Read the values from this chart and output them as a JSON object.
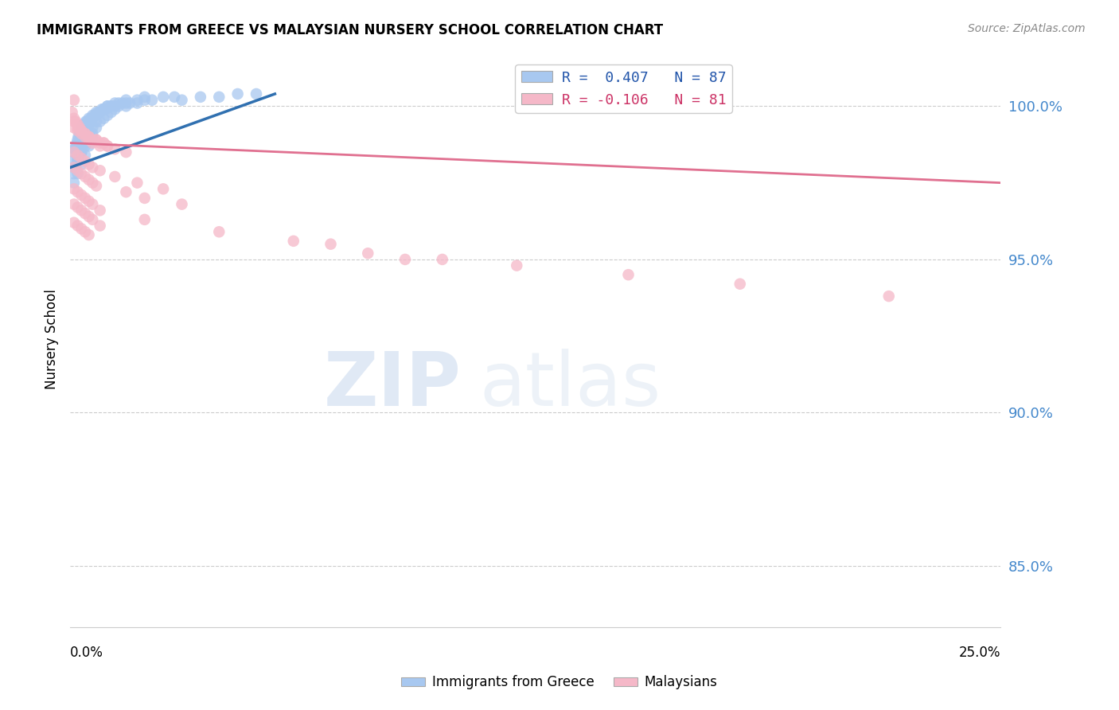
{
  "title": "IMMIGRANTS FROM GREECE VS MALAYSIAN NURSERY SCHOOL CORRELATION CHART",
  "source": "Source: ZipAtlas.com",
  "ylabel": "Nursery School",
  "blue_color": "#a8c8f0",
  "pink_color": "#f5b8c8",
  "blue_line_color": "#3070b0",
  "pink_line_color": "#e07090",
  "watermark_zip": "ZIP",
  "watermark_atlas": "atlas",
  "xlim": [
    0.0,
    0.25
  ],
  "ylim": [
    83.0,
    101.8
  ],
  "y_ticks": [
    85.0,
    90.0,
    95.0,
    100.0
  ],
  "x_tick_positions": [
    0.0,
    0.0625,
    0.125,
    0.1875,
    0.25
  ],
  "blue_scatter_x": [
    0.0005,
    0.001,
    0.0012,
    0.0015,
    0.0018,
    0.002,
    0.0022,
    0.0025,
    0.003,
    0.0032,
    0.0035,
    0.004,
    0.0042,
    0.0045,
    0.005,
    0.0055,
    0.006,
    0.0065,
    0.007,
    0.0075,
    0.008,
    0.0085,
    0.009,
    0.0095,
    0.01,
    0.011,
    0.012,
    0.013,
    0.014,
    0.015,
    0.001,
    0.0015,
    0.002,
    0.0025,
    0.003,
    0.0035,
    0.004,
    0.0045,
    0.005,
    0.0055,
    0.006,
    0.007,
    0.008,
    0.009,
    0.01,
    0.011,
    0.012,
    0.015,
    0.018,
    0.02,
    0.001,
    0.002,
    0.003,
    0.004,
    0.005,
    0.006,
    0.007,
    0.008,
    0.009,
    0.01,
    0.011,
    0.012,
    0.013,
    0.015,
    0.016,
    0.018,
    0.02,
    0.022,
    0.025,
    0.028,
    0.001,
    0.002,
    0.003,
    0.004,
    0.005,
    0.006,
    0.03,
    0.035,
    0.04,
    0.045,
    0.002,
    0.003,
    0.004,
    0.005,
    0.006,
    0.007,
    0.05
  ],
  "blue_scatter_y": [
    98.2,
    98.5,
    98.6,
    98.7,
    98.8,
    98.9,
    99.0,
    99.1,
    99.2,
    99.3,
    99.4,
    99.4,
    99.5,
    99.5,
    99.6,
    99.6,
    99.7,
    99.7,
    99.8,
    99.8,
    99.8,
    99.9,
    99.9,
    99.9,
    100.0,
    100.0,
    100.0,
    100.1,
    100.1,
    100.1,
    97.8,
    98.0,
    98.2,
    98.4,
    98.6,
    98.8,
    99.0,
    99.2,
    99.4,
    99.5,
    99.6,
    99.7,
    99.8,
    99.9,
    100.0,
    100.0,
    100.1,
    100.2,
    100.2,
    100.3,
    98.0,
    98.3,
    98.5,
    98.7,
    98.9,
    99.1,
    99.3,
    99.5,
    99.6,
    99.7,
    99.8,
    99.9,
    100.0,
    100.0,
    100.1,
    100.1,
    100.2,
    100.2,
    100.3,
    100.3,
    97.5,
    97.8,
    98.1,
    98.4,
    98.7,
    99.0,
    100.2,
    100.3,
    100.3,
    100.4,
    98.2,
    98.5,
    98.8,
    99.1,
    99.3,
    99.5,
    100.4
  ],
  "pink_scatter_x": [
    0.0005,
    0.001,
    0.0015,
    0.002,
    0.0025,
    0.003,
    0.004,
    0.005,
    0.006,
    0.007,
    0.008,
    0.009,
    0.01,
    0.001,
    0.002,
    0.003,
    0.004,
    0.005,
    0.006,
    0.008,
    0.001,
    0.002,
    0.003,
    0.004,
    0.005,
    0.007,
    0.009,
    0.01,
    0.012,
    0.015,
    0.001,
    0.002,
    0.003,
    0.004,
    0.005,
    0.006,
    0.008,
    0.012,
    0.018,
    0.025,
    0.001,
    0.002,
    0.003,
    0.004,
    0.005,
    0.006,
    0.007,
    0.015,
    0.02,
    0.03,
    0.001,
    0.002,
    0.003,
    0.004,
    0.005,
    0.006,
    0.008,
    0.02,
    0.04,
    0.06,
    0.001,
    0.002,
    0.003,
    0.004,
    0.005,
    0.006,
    0.008,
    0.07,
    0.08,
    0.09,
    0.001,
    0.002,
    0.003,
    0.004,
    0.005,
    0.1,
    0.12,
    0.15,
    0.18,
    0.22,
    0.001
  ],
  "pink_scatter_y": [
    99.8,
    99.6,
    99.5,
    99.4,
    99.3,
    99.2,
    99.1,
    99.0,
    98.9,
    98.9,
    98.8,
    98.8,
    98.7,
    99.3,
    99.2,
    99.1,
    99.0,
    98.9,
    98.8,
    98.7,
    99.5,
    99.3,
    99.2,
    99.1,
    99.0,
    98.9,
    98.8,
    98.7,
    98.6,
    98.5,
    98.5,
    98.4,
    98.3,
    98.2,
    98.1,
    98.0,
    97.9,
    97.7,
    97.5,
    97.3,
    98.0,
    97.9,
    97.8,
    97.7,
    97.6,
    97.5,
    97.4,
    97.2,
    97.0,
    96.8,
    97.3,
    97.2,
    97.1,
    97.0,
    96.9,
    96.8,
    96.6,
    96.3,
    95.9,
    95.6,
    96.8,
    96.7,
    96.6,
    96.5,
    96.4,
    96.3,
    96.1,
    95.5,
    95.2,
    95.0,
    96.2,
    96.1,
    96.0,
    95.9,
    95.8,
    95.0,
    94.8,
    94.5,
    94.2,
    93.8,
    100.2
  ],
  "blue_line_x": [
    0.0,
    0.055
  ],
  "blue_line_y": [
    98.0,
    100.4
  ],
  "pink_line_x": [
    0.0,
    0.25
  ],
  "pink_line_y": [
    98.8,
    97.5
  ]
}
